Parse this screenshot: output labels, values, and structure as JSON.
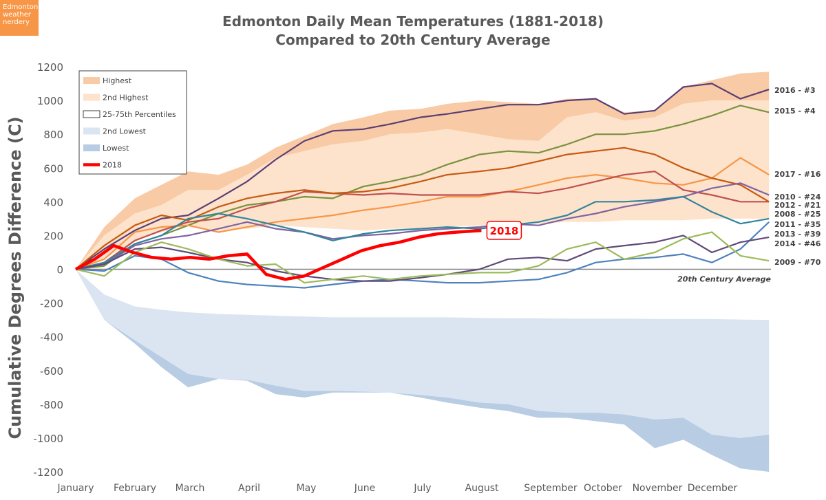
{
  "badge": {
    "line1": "Edmonton",
    "line2": "weather",
    "line3": "nerdery"
  },
  "colors": {
    "highest": "#f8cba6",
    "second_highest": "#fde2cc",
    "percentile": "#ffffff",
    "second_lowest": "#dbe5f1",
    "lowest": "#b8cce4",
    "y2018": "#ff0000",
    "axis_text": "#595959"
  },
  "chart_data": {
    "type": "line",
    "title": "Edmonton Daily Mean Temperatures (1881-2018)",
    "subtitle": "Compared to 20th Century Average",
    "ylabel": "Cumulative Degrees Difference (C)",
    "xlabel": "",
    "ylim": [
      -1200,
      1200
    ],
    "yticks": [
      1200,
      1000,
      800,
      600,
      400,
      200,
      0,
      -200,
      -400,
      -600,
      -800,
      -1000,
      -1200
    ],
    "months": [
      "January",
      "February",
      "March",
      "April",
      "May",
      "June",
      "July",
      "August",
      "September",
      "October",
      "November",
      "December"
    ],
    "baseline_label": "20th Century Average",
    "legend": [
      {
        "key": "highest",
        "label": "Highest"
      },
      {
        "key": "second_highest",
        "label": "2nd Highest"
      },
      {
        "key": "percentile",
        "label": "25-75th Percentiles"
      },
      {
        "key": "second_lowest",
        "label": "2nd Lowest"
      },
      {
        "key": "lowest",
        "label": "Lowest"
      },
      {
        "key": "y2018",
        "label": "2018"
      }
    ],
    "day_points": [
      0,
      15,
      31,
      45,
      59,
      75,
      90,
      105,
      120,
      135,
      151,
      165,
      181,
      195,
      212,
      227,
      243,
      258,
      273,
      288,
      304,
      319,
      334,
      349,
      364
    ],
    "bands": {
      "highest_top": [
        0,
        250,
        420,
        500,
        580,
        560,
        620,
        720,
        790,
        860,
        900,
        940,
        950,
        980,
        1000,
        990,
        980,
        1010,
        1010,
        930,
        940,
        1080,
        1120,
        1160,
        1170
      ],
      "highest_bottom": [
        0,
        200,
        330,
        380,
        470,
        470,
        560,
        660,
        700,
        740,
        760,
        800,
        810,
        830,
        800,
        770,
        760,
        900,
        930,
        880,
        900,
        980,
        1000,
        1000,
        1000
      ],
      "second_high_bottom": [
        0,
        60,
        170,
        220,
        260,
        230,
        240,
        260,
        250,
        240,
        230,
        240,
        240,
        250,
        260,
        270,
        270,
        280,
        280,
        290,
        290,
        290,
        300,
        300,
        300
      ],
      "second_low_top": [
        0,
        -150,
        -220,
        -240,
        -255,
        -265,
        -270,
        -275,
        -280,
        -285,
        -285,
        -285,
        -285,
        -285,
        -288,
        -290,
        -290,
        -292,
        -292,
        -292,
        -295,
        -295,
        -295,
        -298,
        -300
      ],
      "lowest_top": [
        0,
        -300,
        -420,
        -520,
        -620,
        -650,
        -655,
        -690,
        -720,
        -720,
        -725,
        -730,
        -745,
        -760,
        -790,
        -800,
        -840,
        -850,
        -850,
        -860,
        -890,
        -880,
        -980,
        -1000,
        -980
      ],
      "lowest_bottom": [
        0,
        -300,
        -440,
        -580,
        -700,
        -650,
        -660,
        -740,
        -760,
        -730,
        -730,
        -730,
        -760,
        -790,
        -820,
        -840,
        -880,
        -880,
        -900,
        -920,
        -1060,
        -1010,
        -1100,
        -1180,
        -1200
      ]
    },
    "series": [
      {
        "name": "2016 - #3",
        "color": "#5b3e73",
        "values": [
          0,
          120,
          230,
          300,
          320,
          420,
          520,
          650,
          760,
          820,
          830,
          860,
          900,
          920,
          950,
          975,
          975,
          1000,
          1010,
          920,
          940,
          1080,
          1100,
          1010,
          1065
        ]
      },
      {
        "name": "2015 - #4",
        "color": "#77933c",
        "values": [
          0,
          20,
          150,
          200,
          260,
          330,
          380,
          400,
          430,
          420,
          490,
          520,
          560,
          620,
          680,
          700,
          690,
          740,
          800,
          800,
          820,
          860,
          910,
          970,
          930
        ]
      },
      {
        "name": "2017 - #16",
        "color": "#f79646",
        "values": [
          0,
          60,
          220,
          250,
          260,
          220,
          250,
          280,
          300,
          320,
          350,
          370,
          400,
          430,
          430,
          460,
          500,
          540,
          560,
          540,
          510,
          500,
          540,
          660,
          560
        ]
      },
      {
        "name": "2010 - #24",
        "color": "#c0504d",
        "values": [
          0,
          40,
          170,
          230,
          280,
          300,
          360,
          400,
          460,
          450,
          440,
          450,
          440,
          440,
          440,
          460,
          450,
          480,
          520,
          560,
          580,
          470,
          440,
          400,
          400
        ]
      },
      {
        "name": "2012 - #21",
        "color": "#c55a11",
        "values": [
          0,
          140,
          260,
          320,
          290,
          370,
          420,
          450,
          470,
          450,
          460,
          480,
          520,
          560,
          580,
          600,
          640,
          680,
          700,
          720,
          680,
          600,
          540,
          500,
          400
        ]
      },
      {
        "name": "2008 - #25",
        "color": "#8064a2",
        "values": [
          0,
          30,
          140,
          180,
          200,
          240,
          280,
          240,
          220,
          180,
          200,
          210,
          230,
          240,
          250,
          270,
          260,
          300,
          330,
          370,
          400,
          430,
          480,
          510,
          440
        ]
      },
      {
        "name": "2011 - #35",
        "color": "#31859c",
        "values": [
          0,
          40,
          150,
          200,
          300,
          330,
          300,
          260,
          220,
          170,
          210,
          230,
          240,
          250,
          240,
          260,
          280,
          320,
          400,
          400,
          410,
          430,
          340,
          270,
          300
        ]
      },
      {
        "name": "2013 - #39",
        "color": "#4f81bd",
        "values": [
          0,
          -10,
          80,
          60,
          -20,
          -70,
          -90,
          -100,
          -110,
          -90,
          -70,
          -60,
          -70,
          -80,
          -80,
          -70,
          -60,
          -20,
          40,
          60,
          70,
          90,
          40,
          120,
          280
        ]
      },
      {
        "name": "2014 - #46",
        "color": "#60497a",
        "values": [
          0,
          30,
          120,
          130,
          100,
          60,
          40,
          -10,
          -40,
          -60,
          -70,
          -70,
          -50,
          -30,
          0,
          60,
          70,
          50,
          120,
          140,
          160,
          200,
          100,
          160,
          190
        ]
      },
      {
        "name": "2009 - #70",
        "color": "#9bbb59",
        "values": [
          0,
          -40,
          100,
          160,
          120,
          60,
          20,
          30,
          -80,
          -60,
          -40,
          -60,
          -40,
          -30,
          -20,
          -20,
          20,
          120,
          160,
          60,
          100,
          180,
          220,
          80,
          50
        ]
      }
    ],
    "y2018": {
      "name": "2018",
      "days": [
        0,
        10,
        20,
        30,
        40,
        50,
        60,
        70,
        80,
        90,
        100,
        110,
        120,
        130,
        140,
        150,
        160,
        170,
        180,
        190,
        200,
        213
      ],
      "values": [
        0,
        60,
        140,
        100,
        70,
        60,
        70,
        60,
        80,
        90,
        -30,
        -60,
        -40,
        10,
        60,
        110,
        140,
        160,
        190,
        210,
        220,
        230
      ]
    },
    "series_labels": [
      "2016 - #3",
      "2015 - #4",
      "2017 - #16",
      "2010 - #24",
      "2012 - #21",
      "2008 - #25",
      "2011 - #35",
      "2013 - #39",
      "2014 - #46",
      "2009 - #70"
    ]
  }
}
